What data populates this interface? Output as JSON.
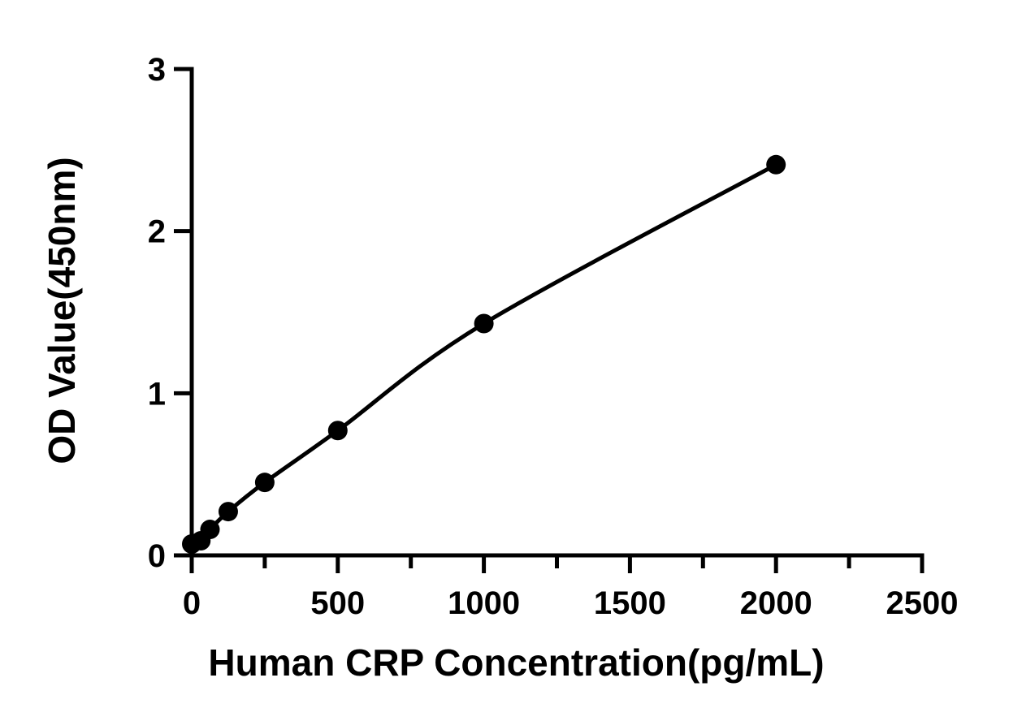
{
  "chart_data": {
    "type": "scatter",
    "title": "",
    "xlabel": "Human CRP Concentration(pg/mL)",
    "ylabel": "OD Value(450nm)",
    "xlim": [
      0,
      2500
    ],
    "ylim": [
      0,
      3
    ],
    "x_ticks": [
      0,
      500,
      1000,
      1500,
      2000,
      2500
    ],
    "x_tick_labels": [
      "0",
      "500",
      "1000",
      "1500",
      "2000",
      "2500"
    ],
    "x_minor_ticks": [
      250,
      750,
      1250,
      1750,
      2250
    ],
    "y_ticks": [
      0,
      1,
      2,
      3
    ],
    "y_tick_labels": [
      "0",
      "1",
      "2",
      "3"
    ],
    "grid": false,
    "legend": "none",
    "series": [
      {
        "points": [
          {
            "x": 0,
            "y": 0.07
          },
          {
            "x": 31.25,
            "y": 0.09
          },
          {
            "x": 62.5,
            "y": 0.16
          },
          {
            "x": 125,
            "y": 0.27
          },
          {
            "x": 250,
            "y": 0.45
          },
          {
            "x": 500,
            "y": 0.77
          },
          {
            "x": 1000,
            "y": 1.43
          },
          {
            "x": 2000,
            "y": 2.41
          }
        ],
        "fit": "smooth curve",
        "color": "#000000"
      }
    ]
  }
}
